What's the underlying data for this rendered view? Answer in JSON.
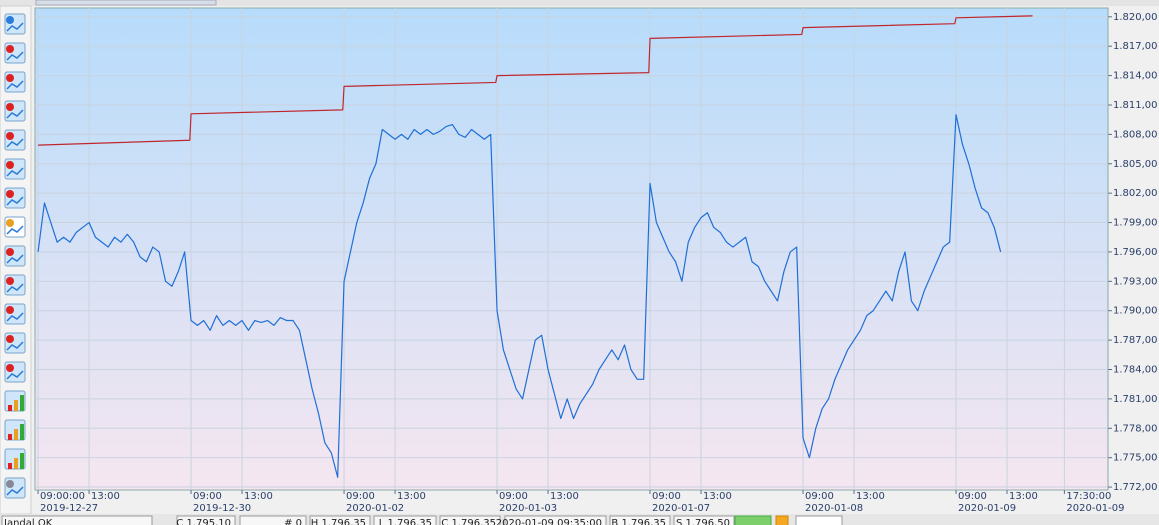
{
  "chart_data": {
    "type": "line",
    "xlim": [
      -0.24,
      83.92
    ],
    "ylim": [
      1771.7,
      1820.9
    ],
    "grid": true,
    "yticks": [
      {
        "value": 1820,
        "label": "1.820,00"
      },
      {
        "value": 1817,
        "label": "1.817,00"
      },
      {
        "value": 1814,
        "label": "1.814,00"
      },
      {
        "value": 1811,
        "label": "1.811,00"
      },
      {
        "value": 1808,
        "label": "1.808,00"
      },
      {
        "value": 1805,
        "label": "1.805,00"
      },
      {
        "value": 1802,
        "label": "1.802,00"
      },
      {
        "value": 1799,
        "label": "1.799,00"
      },
      {
        "value": 1796,
        "label": "1.796,00"
      },
      {
        "value": 1793,
        "label": "1.793,00"
      },
      {
        "value": 1790,
        "label": "1.790,00"
      },
      {
        "value": 1787,
        "label": "1.787,00"
      },
      {
        "value": 1784,
        "label": "1.784,00"
      },
      {
        "value": 1781,
        "label": "1.781,00"
      },
      {
        "value": 1778,
        "label": "1.778,00"
      },
      {
        "value": 1775,
        "label": "1.775,00"
      },
      {
        "value": 1772,
        "label": "1.772,00"
      }
    ],
    "xticks": [
      {
        "value": 0,
        "label": "09:00:00"
      },
      {
        "value": 4,
        "label": "13:00"
      },
      {
        "value": 12,
        "label": "09:00"
      },
      {
        "value": 16,
        "label": "13:00"
      },
      {
        "value": 24,
        "label": "09:00"
      },
      {
        "value": 28,
        "label": "13:00"
      },
      {
        "value": 36,
        "label": "09:00"
      },
      {
        "value": 40,
        "label": "13:00"
      },
      {
        "value": 48,
        "label": "09:00"
      },
      {
        "value": 52,
        "label": "13:00"
      },
      {
        "value": 60,
        "label": "09:00"
      },
      {
        "value": 64,
        "label": "13:00"
      },
      {
        "value": 72,
        "label": "09:00"
      },
      {
        "value": 76,
        "label": "13:00"
      },
      {
        "value": 80.5,
        "label": "17:30:00"
      }
    ],
    "xdate_ticks": [
      {
        "value": 0,
        "label": "2019-12-27"
      },
      {
        "value": 12,
        "label": "2019-12-30"
      },
      {
        "value": 24,
        "label": "2020-01-02"
      },
      {
        "value": 36,
        "label": "2020-01-03"
      },
      {
        "value": 48,
        "label": "2020-01-07"
      },
      {
        "value": 60,
        "label": "2020-01-08"
      },
      {
        "value": 72,
        "label": "2020-01-09"
      },
      {
        "value": 80.5,
        "label": "2020-01-09"
      }
    ],
    "series": [
      {
        "color": "#1f6fd6",
        "x": [
          0,
          0.5,
          1,
          1.5,
          2,
          2.5,
          3,
          3.5,
          4,
          4.5,
          5,
          5.5,
          6,
          6.5,
          7,
          7.5,
          8,
          8.5,
          9,
          9.5,
          10,
          10.5,
          11,
          11.5,
          12,
          12.5,
          13,
          13.5,
          14,
          14.5,
          15,
          15.5,
          16,
          16.5,
          17,
          17.5,
          18,
          18.5,
          19,
          19.5,
          20,
          20.5,
          21,
          21.5,
          22,
          22.5,
          23,
          23.5,
          24,
          24.5,
          25,
          25.5,
          26,
          26.5,
          27,
          27.5,
          28,
          28.5,
          29,
          29.5,
          30,
          30.5,
          31,
          31.5,
          32,
          32.5,
          33,
          33.5,
          34,
          34.5,
          35,
          35.5,
          36,
          36.5,
          37,
          37.5,
          38,
          38.5,
          39,
          39.5,
          40,
          40.5,
          41,
          41.5,
          42,
          42.5,
          43,
          43.5,
          44,
          44.5,
          45,
          45.5,
          46,
          46.5,
          47,
          47.5,
          48,
          48.5,
          49,
          49.5,
          50,
          50.5,
          51,
          51.5,
          52,
          52.5,
          53,
          53.5,
          54,
          54.5,
          55,
          55.5,
          56,
          56.5,
          57,
          57.5,
          58,
          58.5,
          59,
          59.5,
          60,
          60.5,
          61,
          61.5,
          62,
          62.5,
          63,
          63.5,
          64,
          64.5,
          65,
          65.5,
          66,
          66.5,
          67,
          67.5,
          68,
          68.5,
          69,
          69.5,
          70,
          70.5,
          71,
          71.5,
          72,
          72.5,
          73,
          73.5,
          74,
          74.5,
          75,
          75.5
        ],
        "values": [
          1796,
          1801,
          1799,
          1797,
          1797.5,
          1797,
          1798,
          1798.5,
          1799,
          1797.5,
          1797,
          1796.5,
          1797.5,
          1797,
          1797.8,
          1797,
          1795.5,
          1795,
          1796.5,
          1796,
          1793,
          1792.5,
          1794,
          1796,
          1789,
          1788.5,
          1789,
          1788,
          1789.5,
          1788.5,
          1789,
          1788.5,
          1789,
          1788,
          1789,
          1788.8,
          1789,
          1788.5,
          1789.3,
          1789,
          1789,
          1788,
          1785,
          1782,
          1779.5,
          1776.5,
          1775.5,
          1773,
          1793,
          1796,
          1799,
          1801,
          1803.5,
          1805,
          1808.5,
          1808,
          1807.5,
          1808,
          1807.5,
          1808.5,
          1808,
          1808.5,
          1808,
          1808.3,
          1808.8,
          1809,
          1808,
          1807.7,
          1808.5,
          1808,
          1807.5,
          1808,
          1790,
          1786,
          1784,
          1782,
          1781,
          1784,
          1787,
          1787.5,
          1784,
          1781.5,
          1779,
          1781,
          1779,
          1780.5,
          1781.5,
          1782.5,
          1784,
          1785,
          1786,
          1785,
          1786.5,
          1784,
          1783,
          1783,
          1803,
          1799,
          1797.5,
          1796,
          1795,
          1793,
          1797,
          1798.5,
          1799.5,
          1800,
          1798.5,
          1798,
          1797,
          1796.5,
          1797,
          1797.5,
          1795,
          1794.5,
          1793,
          1792,
          1791,
          1794,
          1796,
          1796.5,
          1777,
          1775,
          1778,
          1780,
          1781,
          1783,
          1784.5,
          1786,
          1787,
          1788,
          1789.5,
          1790,
          1791,
          1792,
          1791,
          1794,
          1796,
          1791,
          1790,
          1792,
          1793.5,
          1795,
          1796.5,
          1797,
          1810,
          1807,
          1805,
          1802.5,
          1800.5,
          1800,
          1798.5,
          1796
        ]
      },
      {
        "color": "#c0262d",
        "x": [
          0,
          11.9,
          12,
          23.9,
          24,
          35.9,
          36,
          47.9,
          48,
          59.9,
          60,
          71.9,
          72,
          78
        ],
        "values": [
          1806.9,
          1807.4,
          1810.1,
          1810.5,
          1812.9,
          1813.3,
          1814.0,
          1814.3,
          1817.8,
          1818.2,
          1818.9,
          1819.3,
          1819.9,
          1820.1
        ]
      }
    ]
  },
  "status_bar": [
    "Jandal OK",
    "C 1.795,10",
    "# 0",
    "H 1.796,35",
    "L 1.796,35",
    "C 1.796,35",
    "2020-01-09 09:35:00",
    "B 1.796,35",
    "S 1.796,50"
  ]
}
